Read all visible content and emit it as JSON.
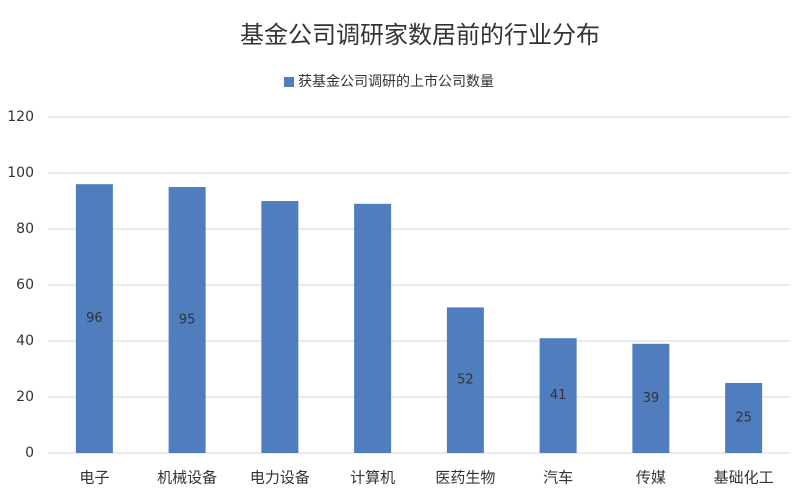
{
  "chart_data": {
    "type": "bar",
    "title": "基金公司调研家数居前的行业分布",
    "legend": "获基金公司调研的上市公司数量",
    "categories": [
      "电子",
      "机械设备",
      "电力设备",
      "计算机",
      "医药生物",
      "汽车",
      "传媒",
      "基础化工"
    ],
    "values": [
      96,
      95,
      90,
      89,
      52,
      41,
      39,
      25
    ],
    "value_labels": [
      "96",
      "95",
      null,
      null,
      "52",
      "41",
      "39",
      "25"
    ],
    "color": "#4f7dbe",
    "ylim": [
      0,
      120
    ],
    "yticks": [
      0,
      20,
      40,
      60,
      80,
      100,
      120
    ],
    "grid": true
  }
}
